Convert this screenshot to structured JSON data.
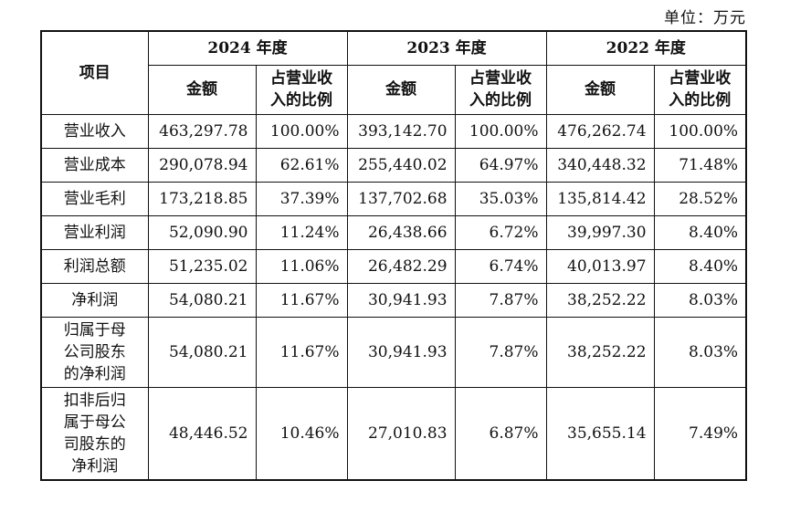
{
  "unit_label": "单位：万元",
  "header": {
    "item": "项目",
    "years": [
      "2024 年度",
      "2023 年度",
      "2022 年度"
    ],
    "amount": "金额",
    "ratio_l1": "占营业收",
    "ratio_l2": "入的比例"
  },
  "rows": [
    {
      "item": "营业收入",
      "v": [
        "463,297.78",
        "100.00%",
        "393,142.70",
        "100.00%",
        "476,262.74",
        "100.00%"
      ]
    },
    {
      "item": "营业成本",
      "v": [
        "290,078.94",
        "62.61%",
        "255,440.02",
        "64.97%",
        "340,448.32",
        "71.48%"
      ]
    },
    {
      "item": "营业毛利",
      "v": [
        "173,218.85",
        "37.39%",
        "137,702.68",
        "35.03%",
        "135,814.42",
        "28.52%"
      ]
    },
    {
      "item": "营业利润",
      "v": [
        "52,090.90",
        "11.24%",
        "26,438.66",
        "6.72%",
        "39,997.30",
        "8.40%"
      ]
    },
    {
      "item": "利润总额",
      "v": [
        "51,235.02",
        "11.06%",
        "26,482.29",
        "6.74%",
        "40,013.97",
        "8.40%"
      ]
    },
    {
      "item": "净利润",
      "v": [
        "54,080.21",
        "11.67%",
        "30,941.93",
        "7.87%",
        "38,252.22",
        "8.03%"
      ]
    },
    {
      "item_lines": [
        "归属于母",
        "公司股东",
        "的净利润"
      ],
      "v": [
        "54,080.21",
        "11.67%",
        "30,941.93",
        "7.87%",
        "38,252.22",
        "8.03%"
      ]
    },
    {
      "item_lines": [
        "扣非后归",
        "属于母公",
        "司股东的",
        "净利润"
      ],
      "v": [
        "48,446.52",
        "10.46%",
        "27,010.83",
        "6.87%",
        "35,655.14",
        "7.49%"
      ]
    }
  ]
}
